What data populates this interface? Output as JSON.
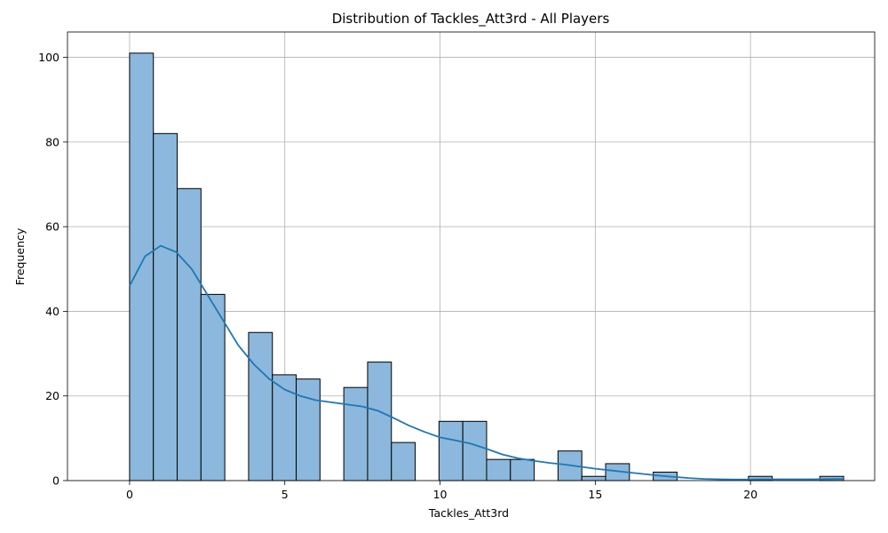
{
  "chart_data": {
    "type": "bar",
    "title": "Distribution of Tackles_Att3rd - All Players",
    "xlabel": "Tackles_Att3rd",
    "ylabel": "Frequency",
    "xlim": [
      -2.0,
      24.0
    ],
    "ylim": [
      0,
      106
    ],
    "xticks": [
      0,
      5,
      10,
      15,
      20
    ],
    "yticks": [
      0,
      20,
      40,
      60,
      80,
      100
    ],
    "grid": true,
    "bin_edges": [
      0,
      0.7667,
      1.5333,
      2.3,
      3.0667,
      3.8333,
      4.6,
      5.3667,
      6.1333,
      6.9,
      7.6667,
      8.4333,
      9.2,
      9.9667,
      10.7333,
      11.5,
      12.2667,
      13.0333,
      13.8,
      14.5667,
      15.3333,
      16.1,
      16.8667,
      17.6333,
      18.4,
      19.1667,
      19.9333,
      20.7,
      21.4667,
      22.2333,
      23.0
    ],
    "counts": [
      101,
      82,
      69,
      44,
      0,
      35,
      25,
      24,
      0,
      22,
      28,
      9,
      0,
      14,
      14,
      5,
      5,
      0,
      7,
      1,
      4,
      0,
      2,
      0,
      0,
      0,
      1,
      0,
      0,
      1
    ],
    "bar_color": "#8bb8dc",
    "kde": {
      "color": "#1f77b4",
      "x": [
        0,
        0.5,
        1.0,
        1.5,
        2.0,
        2.5,
        3.0,
        3.5,
        4.0,
        4.5,
        5.0,
        5.5,
        6.0,
        6.5,
        7.0,
        7.5,
        8.0,
        8.5,
        9.0,
        9.5,
        10.0,
        10.5,
        11.0,
        11.5,
        12.0,
        12.5,
        13.0,
        13.5,
        14.0,
        14.5,
        15.0,
        15.5,
        16.0,
        16.5,
        17.0,
        17.5,
        18.0,
        18.5,
        19.0,
        19.5,
        20.0,
        20.5,
        21.0,
        21.5,
        22.0,
        22.5,
        23.0
      ],
      "y": [
        46,
        53,
        55.5,
        54,
        50,
        44,
        38,
        32,
        27.5,
        24,
        21.5,
        20,
        19,
        18.5,
        18,
        17.5,
        16.5,
        14.8,
        13,
        11.5,
        10.2,
        9.5,
        8.7,
        7.5,
        6.2,
        5.3,
        4.7,
        4.2,
        3.8,
        3.3,
        2.8,
        2.4,
        2.0,
        1.6,
        1.2,
        0.9,
        0.6,
        0.4,
        0.3,
        0.25,
        0.25,
        0.3,
        0.3,
        0.3,
        0.3,
        0.35,
        0.4
      ]
    }
  }
}
